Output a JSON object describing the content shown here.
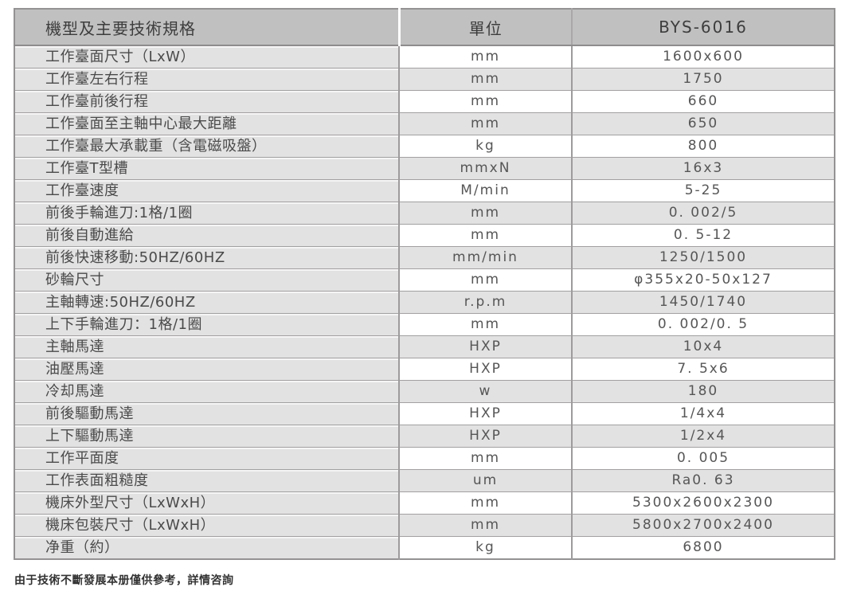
{
  "table": {
    "header": {
      "spec": "機型及主要技術規格",
      "unit": "單位",
      "model": "BYS-6016"
    },
    "rows": [
      {
        "spec": "工作臺面尺寸（LxW）",
        "unit": "mm",
        "value": "1600x600"
      },
      {
        "spec": "工作臺左右行程",
        "unit": "mm",
        "value": "1750"
      },
      {
        "spec": "工作臺前後行程",
        "unit": "mm",
        "value": "660"
      },
      {
        "spec": "工作臺面至主軸中心最大距離",
        "unit": "mm",
        "value": "650"
      },
      {
        "spec": "工作臺最大承載重（含電磁吸盤）",
        "unit": "kg",
        "value": "800"
      },
      {
        "spec": "工作臺T型槽",
        "unit": "mmxN",
        "value": "16x3"
      },
      {
        "spec": "工作臺速度",
        "unit": "M/min",
        "value": "5-25"
      },
      {
        "spec": "前後手輪進刀:1格/1圈",
        "unit": "mm",
        "value": "0. 002/5"
      },
      {
        "spec": "前後自動進給",
        "unit": "mm",
        "value": "0. 5-12"
      },
      {
        "spec": "前後快速移動:50HZ/60HZ",
        "unit": "mm/min",
        "value": "1250/1500"
      },
      {
        "spec": "砂輪尺寸",
        "unit": "mm",
        "value": "φ355x20-50x127"
      },
      {
        "spec": "主軸轉速:50HZ/60HZ",
        "unit": "r.p.m",
        "value": "1450/1740"
      },
      {
        "spec": "上下手輪進刀：1格/1圈",
        "unit": "mm",
        "value": "0. 002/0. 5"
      },
      {
        "spec": "主軸馬達",
        "unit": "HXP",
        "value": "10x4"
      },
      {
        "spec": "油壓馬達",
        "unit": "HXP",
        "value": "7. 5x6"
      },
      {
        "spec": "冷却馬達",
        "unit": "w",
        "value": "180"
      },
      {
        "spec": "前後驅動馬達",
        "unit": "HXP",
        "value": "1/4x4"
      },
      {
        "spec": "上下驅動馬達",
        "unit": "HXP",
        "value": "1/2x4"
      },
      {
        "spec": "工作平面度",
        "unit": "mm",
        "value": "0. 005"
      },
      {
        "spec": "工作表面粗糙度",
        "unit": "um",
        "value": "Ra0. 63"
      },
      {
        "spec": "機床外型尺寸（LxWxH）",
        "unit": "mm",
        "value": "5300x2600x2300"
      },
      {
        "spec": "機床包裝尺寸（LxWxH）",
        "unit": "mm",
        "value": "5800x2700x2400"
      },
      {
        "spec": "净重（約）",
        "unit": "kg",
        "value": "6800"
      }
    ]
  },
  "footer": {
    "note": "由于技術不斷發展本册僅供參考，詳情咨詢"
  },
  "colors": {
    "header_bg": "#c1c0c0",
    "row_shade": "#e3e2e2",
    "row_white": "#ffffff",
    "border": "#9d9b9b",
    "text": "#4a4a4a"
  }
}
